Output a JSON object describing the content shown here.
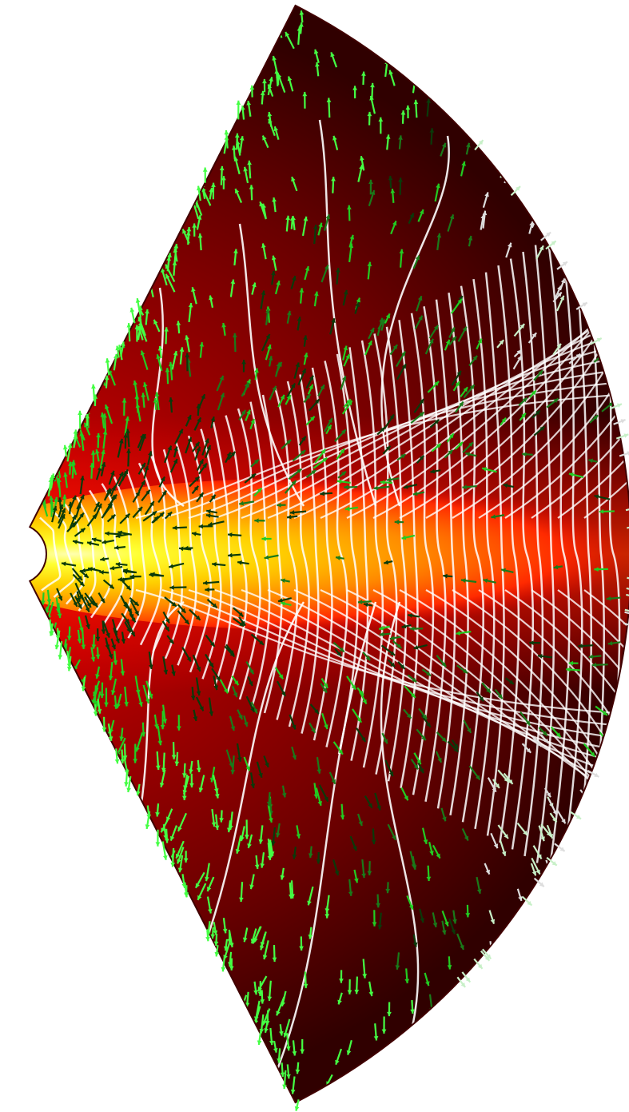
{
  "figure": {
    "kind": "simulation-snapshot",
    "domain": "wedge",
    "colormap": [
      "#2a0000",
      "#5c0000",
      "#8a0000",
      "#c00000",
      "#ff1a00",
      "#ff6a00",
      "#ffb000",
      "#ffe800",
      "#ffff80"
    ],
    "field_line_color": "#ffffff",
    "arrow_colors": [
      "#0a3a0a",
      "#1a7a1a",
      "#22cc22",
      "#44ff44",
      "#c8f0c8",
      "#dddddd"
    ]
  }
}
